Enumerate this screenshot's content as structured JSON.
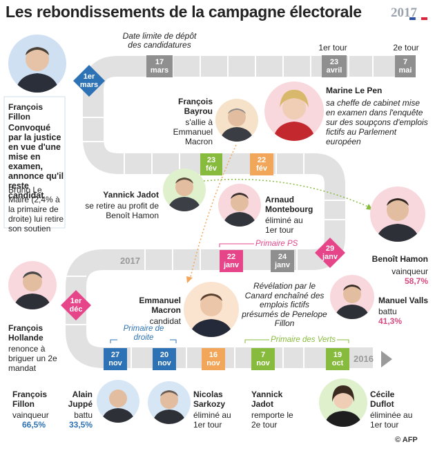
{
  "title": "Les rebondissements de la campagne électorale",
  "year_badge": "2017",
  "credit": "© AFP",
  "brand_color": "#2d72b5",
  "annotations": {
    "deadline": "Date limite de dépôt des candidatures",
    "first_round": "1er tour",
    "second_round": "2e tour",
    "primaire_ps": "Primaire PS",
    "primaire_droite": "Primaire de droite",
    "primaire_verts": "Primaire des Verts",
    "year_2017": "2017",
    "year_2016": "2016"
  },
  "dates": {
    "d17mars": {
      "day": "17",
      "month": "mars"
    },
    "d23avril": {
      "day": "23",
      "month": "avril"
    },
    "d7mai": {
      "day": "7",
      "month": "mai"
    },
    "d1mars": {
      "day": "1er",
      "month": "mars"
    },
    "d23fev": {
      "day": "23",
      "month": "fév"
    },
    "d22fev": {
      "day": "22",
      "month": "fév"
    },
    "d29janv": {
      "day": "29",
      "month": "janv"
    },
    "d22janv": {
      "day": "22",
      "month": "janv"
    },
    "d24janv": {
      "day": "24",
      "month": "janv"
    },
    "d1dec": {
      "day": "1er",
      "month": "déc"
    },
    "d27nov": {
      "day": "27",
      "month": "nov"
    },
    "d20nov": {
      "day": "20",
      "month": "nov"
    },
    "d16nov": {
      "day": "16",
      "month": "nov"
    },
    "d7nov": {
      "day": "7",
      "month": "nov"
    },
    "d19oct": {
      "day": "19",
      "month": "oct"
    }
  },
  "people": {
    "fillon_top": {
      "name": "François Fillon",
      "desc": "Convoqué par la justice en vue d'une mise en examen, annonce qu'il reste candidat",
      "note": "Bruno Le Maire (2,4% à la primaire de droite) lui retire son soutien"
    },
    "bayrou": {
      "name": "François Bayrou",
      "desc": "s'allie à Emmanuel Macron"
    },
    "lepen": {
      "name": "Marine Le Pen",
      "desc": "sa cheffe de cabinet mise en examen dans l'enquête sur des soupçons d'emplois fictifs au Parlement européen"
    },
    "jadot_top": {
      "name": "Yannick Jadot",
      "desc": "se retire au profit de Benoît Hamon"
    },
    "montebourg": {
      "name": "Arnaud Montebourg",
      "desc": "éliminé au 1er tour"
    },
    "hamon": {
      "name": "Benoît Hamon",
      "desc": "vainqueur",
      "score": "58,7%"
    },
    "valls": {
      "name": "Manuel Valls",
      "desc": "battu",
      "score": "41,3%"
    },
    "macron": {
      "name": "Emmanuel Macron",
      "desc": "candidat"
    },
    "penelope": {
      "desc": "Révélation par le Canard enchaîné des emplois fictifs présumés de Penelope Fillon"
    },
    "hollande": {
      "name": "François Hollande",
      "desc": "renonce à briguer un 2e mandat"
    },
    "fillon_bottom": {
      "name": "François Fillon",
      "desc": "vainqueur",
      "score": "66,5%"
    },
    "juppe": {
      "name": "Alain Juppé",
      "desc": "battu",
      "score": "33,5%"
    },
    "sarkozy": {
      "name": "Nicolas Sarkozy",
      "desc": "éliminé au 1er tour"
    },
    "jadot_bottom": {
      "name": "Yannick Jadot",
      "desc": "remporte le 2e tour"
    },
    "duflot": {
      "name": "Cécile Duflot",
      "desc": "éliminée au 1er tour"
    }
  }
}
